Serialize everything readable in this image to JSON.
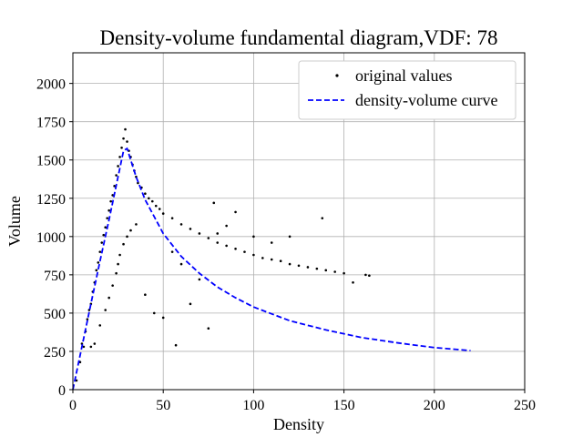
{
  "chart_data": {
    "type": "scatter",
    "title": "Density-volume fundamental diagram,VDF: 78",
    "xlabel": "Density",
    "ylabel": "Volume",
    "xlim": [
      0,
      250
    ],
    "ylim": [
      0,
      2200
    ],
    "x_ticks": [
      0,
      50,
      100,
      150,
      200,
      250
    ],
    "y_ticks": [
      0,
      250,
      500,
      750,
      1000,
      1250,
      1500,
      1750,
      2000
    ],
    "grid": true,
    "legend_position": "top-right",
    "series": [
      {
        "name": "original values",
        "kind": "scatter",
        "color": "#000000",
        "points": [
          [
            2,
            60
          ],
          [
            4,
            180
          ],
          [
            5,
            300
          ],
          [
            6,
            280
          ],
          [
            7,
            380
          ],
          [
            8,
            460
          ],
          [
            9,
            520
          ],
          [
            10,
            560
          ],
          [
            11,
            640
          ],
          [
            12,
            700
          ],
          [
            13,
            780
          ],
          [
            14,
            830
          ],
          [
            15,
            900
          ],
          [
            16,
            960
          ],
          [
            17,
            1010
          ],
          [
            18,
            1060
          ],
          [
            19,
            1120
          ],
          [
            20,
            1170
          ],
          [
            21,
            1230
          ],
          [
            22,
            1270
          ],
          [
            23,
            1330
          ],
          [
            24,
            1400
          ],
          [
            25,
            1460
          ],
          [
            26,
            1520
          ],
          [
            27,
            1580
          ],
          [
            28,
            1640
          ],
          [
            29,
            1700
          ],
          [
            30,
            1620
          ],
          [
            31,
            1560
          ],
          [
            32,
            1520
          ],
          [
            33,
            1470
          ],
          [
            34,
            1430
          ],
          [
            35,
            1390
          ],
          [
            36,
            1350
          ],
          [
            38,
            1320
          ],
          [
            40,
            1280
          ],
          [
            42,
            1250
          ],
          [
            44,
            1230
          ],
          [
            46,
            1200
          ],
          [
            48,
            1180
          ],
          [
            50,
            1150
          ],
          [
            55,
            1120
          ],
          [
            60,
            1080
          ],
          [
            65,
            1050
          ],
          [
            70,
            1020
          ],
          [
            75,
            990
          ],
          [
            80,
            960
          ],
          [
            85,
            940
          ],
          [
            90,
            920
          ],
          [
            95,
            900
          ],
          [
            100,
            880
          ],
          [
            105,
            860
          ],
          [
            110,
            850
          ],
          [
            115,
            840
          ],
          [
            120,
            820
          ],
          [
            125,
            810
          ],
          [
            130,
            800
          ],
          [
            135,
            790
          ],
          [
            140,
            780
          ],
          [
            145,
            770
          ],
          [
            150,
            760
          ],
          [
            162,
            750
          ],
          [
            164,
            745
          ],
          [
            10,
            280
          ],
          [
            12,
            300
          ],
          [
            15,
            420
          ],
          [
            18,
            520
          ],
          [
            20,
            600
          ],
          [
            22,
            680
          ],
          [
            24,
            760
          ],
          [
            25,
            820
          ],
          [
            26,
            880
          ],
          [
            28,
            950
          ],
          [
            30,
            1000
          ],
          [
            32,
            1040
          ],
          [
            35,
            1080
          ],
          [
            40,
            620
          ],
          [
            45,
            500
          ],
          [
            50,
            470
          ],
          [
            55,
            900
          ],
          [
            60,
            820
          ],
          [
            65,
            560
          ],
          [
            70,
            720
          ],
          [
            75,
            400
          ],
          [
            57,
            290
          ],
          [
            80,
            1020
          ],
          [
            90,
            1160
          ],
          [
            100,
            1000
          ],
          [
            110,
            960
          ],
          [
            120,
            1000
          ],
          [
            138,
            1120
          ],
          [
            155,
            700
          ],
          [
            78,
            1220
          ],
          [
            85,
            1070
          ]
        ]
      },
      {
        "name": "density-volume curve",
        "kind": "line",
        "style": "dashed",
        "color": "#0000ff",
        "points": [
          [
            0,
            0
          ],
          [
            5,
            280
          ],
          [
            10,
            560
          ],
          [
            15,
            840
          ],
          [
            20,
            1110
          ],
          [
            25,
            1390
          ],
          [
            28,
            1560
          ],
          [
            30,
            1575
          ],
          [
            35,
            1390
          ],
          [
            40,
            1240
          ],
          [
            50,
            1020
          ],
          [
            60,
            870
          ],
          [
            70,
            760
          ],
          [
            80,
            670
          ],
          [
            90,
            600
          ],
          [
            100,
            540
          ],
          [
            120,
            450
          ],
          [
            140,
            390
          ],
          [
            160,
            340
          ],
          [
            180,
            305
          ],
          [
            200,
            275
          ],
          [
            220,
            255
          ]
        ]
      }
    ]
  }
}
